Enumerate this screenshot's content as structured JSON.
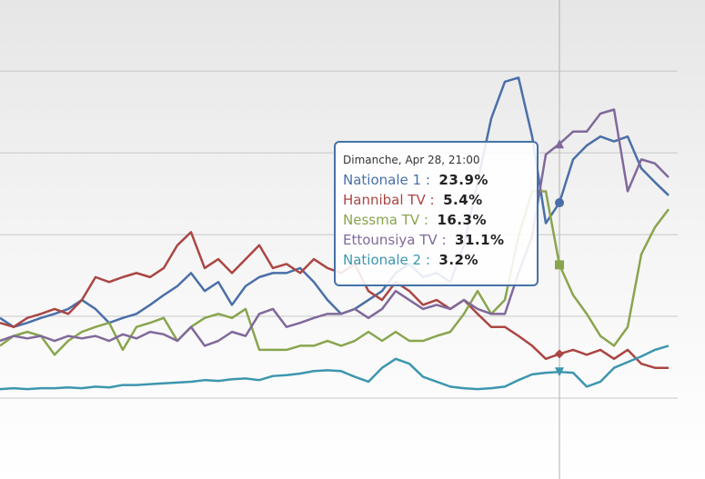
{
  "chart_data": {
    "type": "line",
    "ylim": [
      -9.9,
      48.7
    ],
    "yticks": [
      0,
      10,
      20,
      30,
      40
    ],
    "grid": true,
    "series": [
      {
        "name": "Nationale 1",
        "color": "#4a6fa8",
        "marker": "circle",
        "values": [
          9.8,
          8.7,
          9.2,
          9.8,
          10.3,
          10.9,
          12.0,
          10.9,
          9.2,
          9.8,
          10.3,
          11.4,
          12.6,
          13.7,
          15.3,
          13.1,
          14.2,
          11.4,
          13.7,
          14.8,
          15.3,
          15.3,
          15.9,
          14.2,
          12.0,
          10.3,
          10.9,
          12.0,
          13.1,
          15.3,
          16.4,
          14.8,
          15.3,
          14.2,
          18.7,
          26.4,
          34.2,
          38.7,
          39.2,
          32.0,
          21.4,
          23.9,
          29.2,
          30.9,
          32.0,
          31.4,
          32.0,
          28.1,
          26.4,
          24.8
        ]
      },
      {
        "name": "Hannibal TV",
        "color": "#aa4643",
        "marker": "diamond",
        "values": [
          9.2,
          8.7,
          9.8,
          10.3,
          10.9,
          10.3,
          12.0,
          14.8,
          14.2,
          14.8,
          15.3,
          14.8,
          15.9,
          18.7,
          20.3,
          15.9,
          17.0,
          15.3,
          17.0,
          18.7,
          15.9,
          16.4,
          15.3,
          17.0,
          15.9,
          15.3,
          16.4,
          13.1,
          12.0,
          14.2,
          13.1,
          11.4,
          12.0,
          10.9,
          12.0,
          10.3,
          8.7,
          8.7,
          7.6,
          6.4,
          4.8,
          5.4,
          5.9,
          5.3,
          5.9,
          4.8,
          5.9,
          4.2,
          3.7,
          3.7
        ]
      },
      {
        "name": "Nessma TV",
        "color": "#89a54e",
        "marker": "square",
        "values": [
          6.4,
          7.6,
          8.1,
          7.6,
          5.3,
          7.0,
          8.1,
          8.7,
          9.2,
          5.9,
          8.7,
          9.2,
          9.8,
          7.0,
          8.7,
          9.8,
          10.3,
          9.8,
          10.9,
          5.9,
          5.9,
          5.9,
          6.4,
          6.4,
          7.0,
          6.4,
          7.0,
          8.1,
          7.0,
          8.1,
          7.0,
          7.0,
          7.6,
          8.1,
          10.3,
          13.1,
          10.3,
          12.0,
          19.8,
          25.3,
          25.3,
          16.3,
          12.6,
          10.3,
          7.6,
          6.4,
          8.7,
          17.6,
          20.9,
          23.1
        ]
      },
      {
        "name": "Ettounsiya TV",
        "color": "#80699b",
        "marker": "triangle",
        "values": [
          7.0,
          7.6,
          7.3,
          7.6,
          7.0,
          7.6,
          7.3,
          7.6,
          7.0,
          7.8,
          7.3,
          8.1,
          7.8,
          7.0,
          8.7,
          6.4,
          7.0,
          8.1,
          7.6,
          10.3,
          10.9,
          8.7,
          9.2,
          9.8,
          10.3,
          10.3,
          10.9,
          9.8,
          10.9,
          13.1,
          12.0,
          10.9,
          11.4,
          10.9,
          12.0,
          10.9,
          10.3,
          10.3,
          15.3,
          19.8,
          29.8,
          31.1,
          32.6,
          32.6,
          34.8,
          35.3,
          25.3,
          29.2,
          28.7,
          27.0
        ]
      },
      {
        "name": "Nationale 2",
        "color": "#3d96ae",
        "marker": "triangle-down",
        "values": [
          1.1,
          1.2,
          1.1,
          1.2,
          1.2,
          1.3,
          1.2,
          1.4,
          1.3,
          1.6,
          1.6,
          1.7,
          1.8,
          1.9,
          2.0,
          2.2,
          2.1,
          2.3,
          2.4,
          2.2,
          2.7,
          2.8,
          3.0,
          3.3,
          3.4,
          3.3,
          2.6,
          2.0,
          3.7,
          4.8,
          4.2,
          2.6,
          2.0,
          1.4,
          1.2,
          1.1,
          1.2,
          1.4,
          2.2,
          2.9,
          3.1,
          3.2,
          3.1,
          1.4,
          2.0,
          3.7,
          4.4,
          5.1,
          5.9,
          6.4
        ]
      }
    ],
    "tooltip": {
      "header": "Dimanche, Apr 28, 21:00",
      "index": 41,
      "value_labels": [
        "23.9%",
        "5.4%",
        "16.3%",
        "31.1%",
        "3.2%"
      ]
    }
  }
}
